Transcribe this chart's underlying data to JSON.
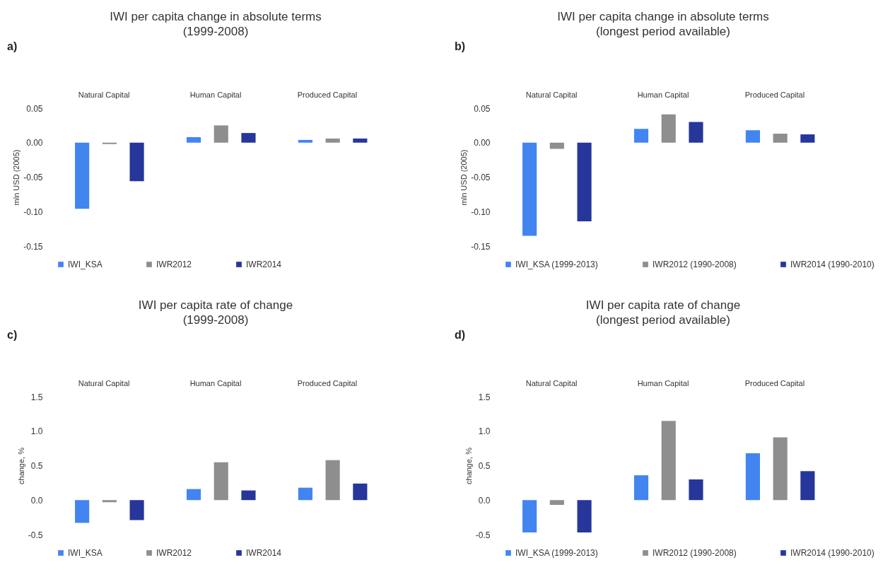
{
  "chart_data": [
    {
      "type": "bar",
      "title": "IWI per capita change in absolute terms",
      "subtitle": "(1999-2008)",
      "ylabel": "mln USD (2005)",
      "annotations": [
        "a)"
      ],
      "categories": [
        "Natural Capital",
        "Human Capital",
        "Produced Capital"
      ],
      "legend": "bottom",
      "ylim": [
        -0.15,
        0.05
      ],
      "yticks": [
        {
          "value": -0.15,
          "label": "-0.15"
        },
        {
          "value": -0.1,
          "label": "-0.10"
        },
        {
          "value": -0.05,
          "label": "-0.05"
        },
        {
          "value": 0,
          "label": "0.00"
        },
        {
          "value": 0.05,
          "label": "0.05"
        }
      ],
      "series": [
        {
          "name": "IWI_KSA",
          "color": "#4285f0",
          "values": [
            -0.096,
            0.008,
            0.004
          ]
        },
        {
          "name": "IWR2012",
          "color": "#8e8e8e",
          "values": [
            -0.002,
            0.025,
            0.006
          ]
        },
        {
          "name": "IWR2014",
          "color": "#26369a",
          "values": [
            -0.056,
            0.014,
            0.006
          ]
        }
      ]
    },
    {
      "type": "bar",
      "title": "IWI per capita change in absolute terms",
      "subtitle": "(longest period available)",
      "ylabel": "mln USD (2005)",
      "annotations": [
        "b)"
      ],
      "categories": [
        "Natural Capital",
        "Human Capital",
        "Produced Capital"
      ],
      "legend": "bottom",
      "ylim": [
        -0.15,
        0.05
      ],
      "yticks": [
        {
          "value": -0.15,
          "label": "-0.15"
        },
        {
          "value": -0.1,
          "label": "-0.10"
        },
        {
          "value": -0.05,
          "label": "-0.05"
        },
        {
          "value": 0,
          "label": "0.00"
        },
        {
          "value": 0.05,
          "label": "0.05"
        }
      ],
      "series": [
        {
          "name": "IWI_KSA (1999-2013)",
          "color": "#4285f0",
          "values": [
            -0.135,
            0.02,
            0.018
          ]
        },
        {
          "name": "IWR2012 (1990-2008)",
          "color": "#8e8e8e",
          "values": [
            -0.009,
            0.041,
            0.013
          ]
        },
        {
          "name": "IWR2014 (1990-2010)",
          "color": "#26369a",
          "values": [
            -0.114,
            0.03,
            0.012
          ]
        }
      ]
    },
    {
      "type": "bar",
      "title": "IWI per capita rate of change",
      "subtitle": "(1999-2008)",
      "ylabel": "change, %",
      "annotations": [
        "c)"
      ],
      "categories": [
        "Natural Capital",
        "Human Capital",
        "Produced Capital"
      ],
      "legend": "bottom",
      "ylim": [
        -0.5,
        1.5
      ],
      "yticks": [
        {
          "value": -0.5,
          "label": "-0.5"
        },
        {
          "value": 0,
          "label": "0.0"
        },
        {
          "value": 0.5,
          "label": "0.5"
        },
        {
          "value": 1,
          "label": "1.0"
        },
        {
          "value": 1.5,
          "label": "1.5"
        }
      ],
      "series": [
        {
          "name": "IWI_KSA",
          "color": "#4285f0",
          "values": [
            -0.33,
            0.16,
            0.18
          ]
        },
        {
          "name": "IWR2012",
          "color": "#8e8e8e",
          "values": [
            -0.03,
            0.55,
            0.58
          ]
        },
        {
          "name": "IWR2014",
          "color": "#26369a",
          "values": [
            -0.29,
            0.14,
            0.24
          ]
        }
      ]
    },
    {
      "type": "bar",
      "title": "IWI per capita rate of change",
      "subtitle": "(longest period available)",
      "ylabel": "change, %",
      "annotations": [
        "d)"
      ],
      "categories": [
        "Natural Capital",
        "Human Capital",
        "Produced Capital"
      ],
      "legend": "bottom",
      "ylim": [
        -0.5,
        1.5
      ],
      "yticks": [
        {
          "value": -0.5,
          "label": "-0.5"
        },
        {
          "value": 0,
          "label": "0.0"
        },
        {
          "value": 0.5,
          "label": "0.5"
        },
        {
          "value": 1,
          "label": "1.0"
        },
        {
          "value": 1.5,
          "label": "1.5"
        }
      ],
      "series": [
        {
          "name": "IWI_KSA (1999-2013)",
          "color": "#4285f0",
          "values": [
            -0.47,
            0.36,
            0.68
          ]
        },
        {
          "name": "IWR2012 (1990-2008)",
          "color": "#8e8e8e",
          "values": [
            -0.07,
            1.15,
            0.91
          ]
        },
        {
          "name": "IWR2014 (1990-2010)",
          "color": "#26369a",
          "values": [
            -0.47,
            0.3,
            0.42
          ]
        }
      ]
    }
  ]
}
